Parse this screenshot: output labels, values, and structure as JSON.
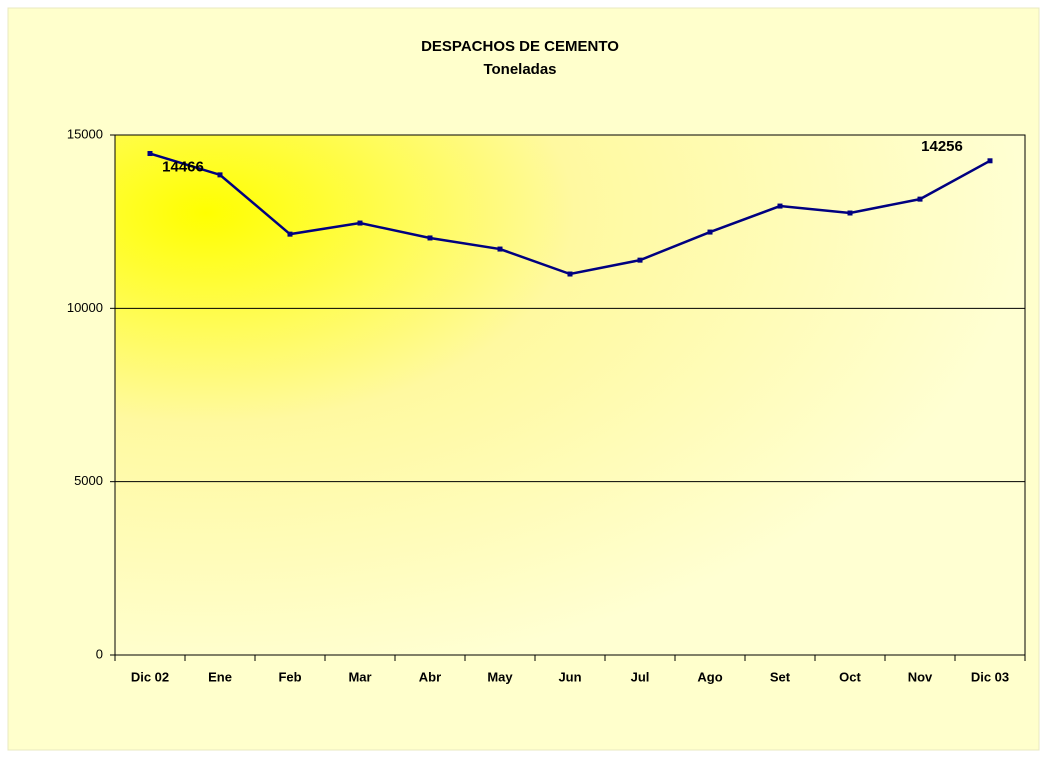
{
  "chart_data": {
    "type": "line",
    "title": "DESPACHOS DE CEMENTO",
    "subtitle": "Toneladas",
    "categories": [
      "Dic 02",
      "Ene",
      "Feb",
      "Mar",
      "Abr",
      "May",
      "Jun",
      "Jul",
      "Ago",
      "Set",
      "Oct",
      "Nov",
      "Dic 03"
    ],
    "series": [
      {
        "name": "Despachos",
        "color": "#000080",
        "values": [
          14466,
          13850,
          12140,
          12460,
          12030,
          11710,
          10990,
          11390,
          12200,
          12950,
          12750,
          13150,
          14256
        ],
        "value_labels": [
          "14466",
          null,
          null,
          null,
          null,
          null,
          null,
          null,
          null,
          null,
          null,
          null,
          "14256"
        ]
      }
    ],
    "ylim": [
      0,
      15000
    ],
    "yticks": [
      0,
      5000,
      10000,
      15000
    ],
    "grid": true
  }
}
